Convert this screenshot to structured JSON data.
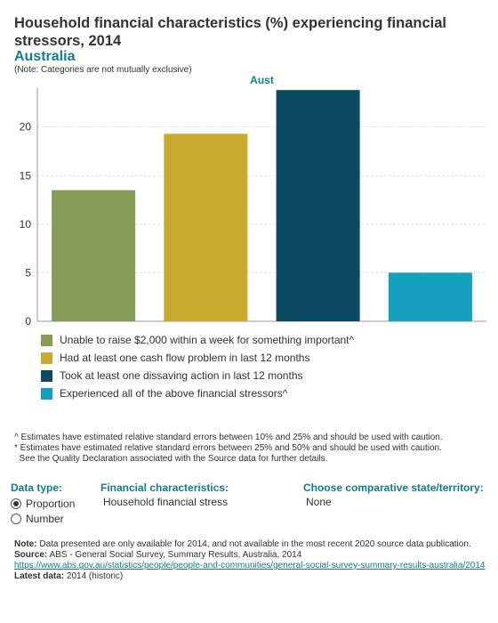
{
  "header": {
    "title": "Household financial characteristics (%) experiencing financial stressors, 2014",
    "region": "Australia",
    "note": "(Note: Categories are not mutually exclusive)"
  },
  "chart_data": {
    "type": "bar",
    "title": "Aust",
    "categories": [
      "Unable to raise $2,000 within a week for something important^",
      "Had at least one cash flow problem in last 12 months",
      "Took at least one dissaving action in last 12 months",
      "Experienced all of the above financial stressors^"
    ],
    "values": [
      13.5,
      19.3,
      23.8,
      5.0
    ],
    "colors": [
      "#869c57",
      "#c9aa2e",
      "#0b4a60",
      "#16a0bf"
    ],
    "yticks": [
      0,
      5,
      10,
      15,
      20
    ],
    "ylim": [
      0,
      24
    ],
    "grid": true,
    "legend_position": "bottom"
  },
  "footnotes": [
    "^ Estimates have estimated relative standard errors between 10% and 25% and should be used with caution.",
    "* Estimates have estimated relative standard errors between 25% and 50% and should be used with caution.",
    "  See the Quality Declaration associated with the Source data for further details."
  ],
  "controls": {
    "data_type": {
      "label": "Data type:",
      "options": [
        "Proportion",
        "Number"
      ],
      "selected": "Proportion"
    },
    "financial": {
      "label": "Financial characteristics:",
      "value": "Household financial stress"
    },
    "comparative": {
      "label": "Choose comparative state/territory:",
      "value": "None"
    }
  },
  "bottom": {
    "note_label": "Note:",
    "note_text": " Data presented are only available for 2014, and not available in the most recent 2020 source data publication.",
    "source_label": "Source:",
    "source_text": " ABS - General Social Survey, Summary Results, Australia, 2014",
    "link": "https://www.abs.gov.au/statistics/people/people-and-communities/general-social-survey-summary-results-australia/2014",
    "latest_label": "Latest data:",
    "latest_text": " 2014 (historic)"
  }
}
